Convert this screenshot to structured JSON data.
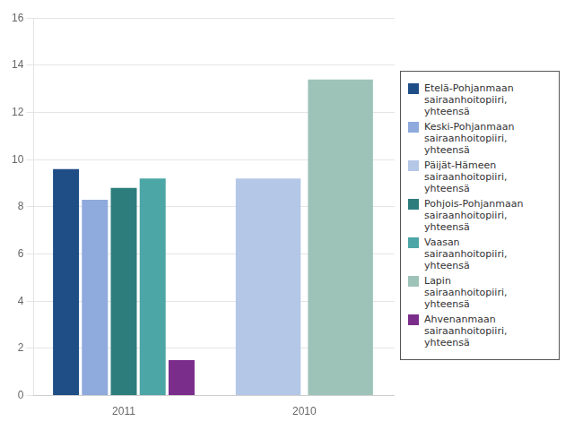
{
  "chart_data": {
    "type": "bar",
    "categories": [
      "2011",
      "2010"
    ],
    "series": [
      {
        "name": "Etelä-Pohjanmaan\nsairaanhoitopiiri,\nyhteensä",
        "color": "#1f4e87",
        "values": [
          9.6,
          null
        ]
      },
      {
        "name": "Keski-Pohjanmaan\nsairaanhoitopiiri,\nyhteensä",
        "color": "#8faadc",
        "values": [
          8.3,
          null
        ]
      },
      {
        "name": "Päijät-Hämeen\nsairaanhoitopiiri,\nyhteensä",
        "color": "#b4c7e7",
        "values": [
          null,
          9.2
        ]
      },
      {
        "name": "Pohjois-Pohjanmaan\nsairaanhoitopiiri,\nyhteensä",
        "color": "#2e7d7d",
        "values": [
          8.8,
          null
        ]
      },
      {
        "name": "Vaasan\nsairaanhoitopiiri,\nyhteensä",
        "color": "#4da6a6",
        "values": [
          9.2,
          null
        ]
      },
      {
        "name": "Lapin\nsairaanhoitopiiri,\nyhteensä",
        "color": "#9dc3b8",
        "values": [
          null,
          13.4
        ]
      },
      {
        "name": "Ahvenanmaan\nsairaanhoitopiiri,\nyhteensä",
        "color": "#7b2d8b",
        "values": [
          1.5,
          null
        ]
      }
    ],
    "ylim": [
      0,
      16
    ],
    "yticks": [
      0,
      2,
      4,
      6,
      8,
      10,
      12,
      14,
      16
    ],
    "grid": true,
    "legend": "right"
  }
}
